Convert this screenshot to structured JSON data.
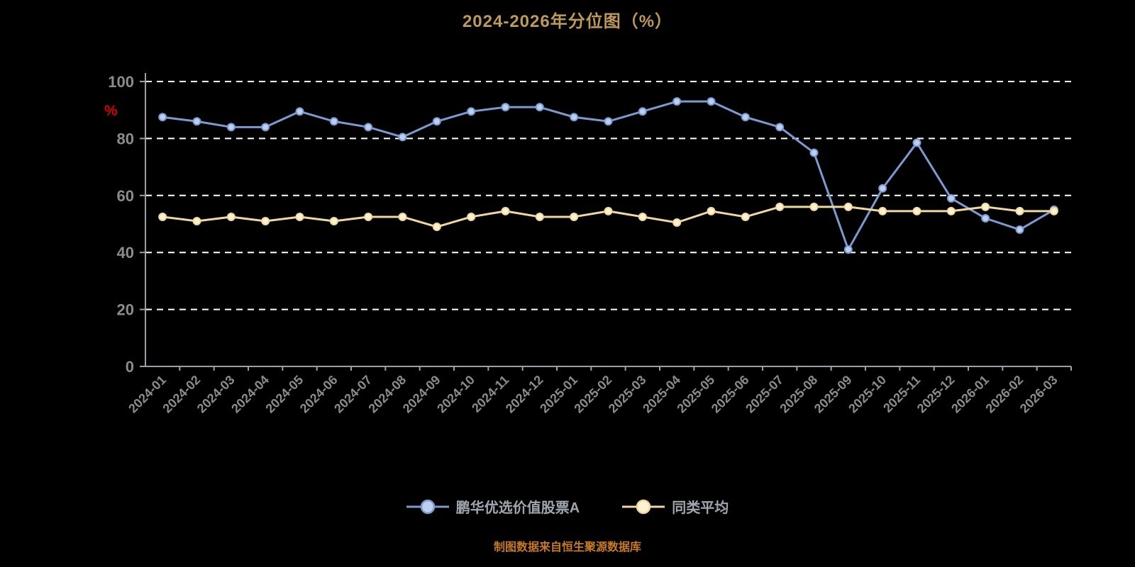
{
  "chart_data": {
    "type": "line",
    "title": "2024-2026年分位图（%）",
    "source_note": "制图数据来自恒生聚源数据库",
    "ylabel": "%",
    "ylim": [
      0,
      100
    ],
    "yticks": [
      0,
      20,
      40,
      60,
      80,
      100
    ],
    "grid": "dashed-horizontal",
    "legend_position": "bottom",
    "categories": [
      "2024-01",
      "2024-02",
      "2024-03",
      "2024-04",
      "2024-05",
      "2024-06",
      "2024-07",
      "2024-08",
      "2024-09",
      "2024-10",
      "2024-11",
      "2024-12",
      "2025-01",
      "2025-02",
      "2025-03",
      "2025-04",
      "2025-05",
      "2025-06",
      "2025-07",
      "2025-08",
      "2025-09",
      "2025-10",
      "2025-11",
      "2025-12",
      "2026-01",
      "2026-02",
      "2026-03"
    ],
    "series": [
      {
        "name": "鹏华优选价值股票A",
        "color": "#7A9AD0",
        "marker_fill": "#BDCFEE",
        "values": [
          87.5,
          86,
          84,
          84,
          89.5,
          86,
          84,
          80.5,
          86,
          89.5,
          91,
          91,
          87.5,
          86,
          89.5,
          93,
          93,
          87.5,
          84,
          75,
          41,
          62.5,
          78.5,
          59,
          52,
          48,
          55
        ]
      },
      {
        "name": "同类平均",
        "color": "#EFD9A0",
        "marker_fill": "#FBF2D2",
        "values": [
          52.5,
          51,
          52.5,
          51,
          52.5,
          51,
          52.5,
          52.5,
          49,
          52.5,
          54.5,
          52.5,
          52.5,
          54.5,
          52.5,
          50.5,
          54.5,
          52.5,
          56,
          56,
          56,
          54.5,
          54.5,
          54.5,
          56,
          54.5,
          54.5
        ]
      }
    ]
  },
  "colors": {
    "background": "#000000",
    "title": "#BD9A57",
    "source": "#C87A1E",
    "axis_label": "#D40000",
    "tick_text": "#8C8C8C",
    "gridline": "#FFFFFF",
    "axis_line": "#9AA0A6",
    "legend_text": "#9FA6AD"
  }
}
